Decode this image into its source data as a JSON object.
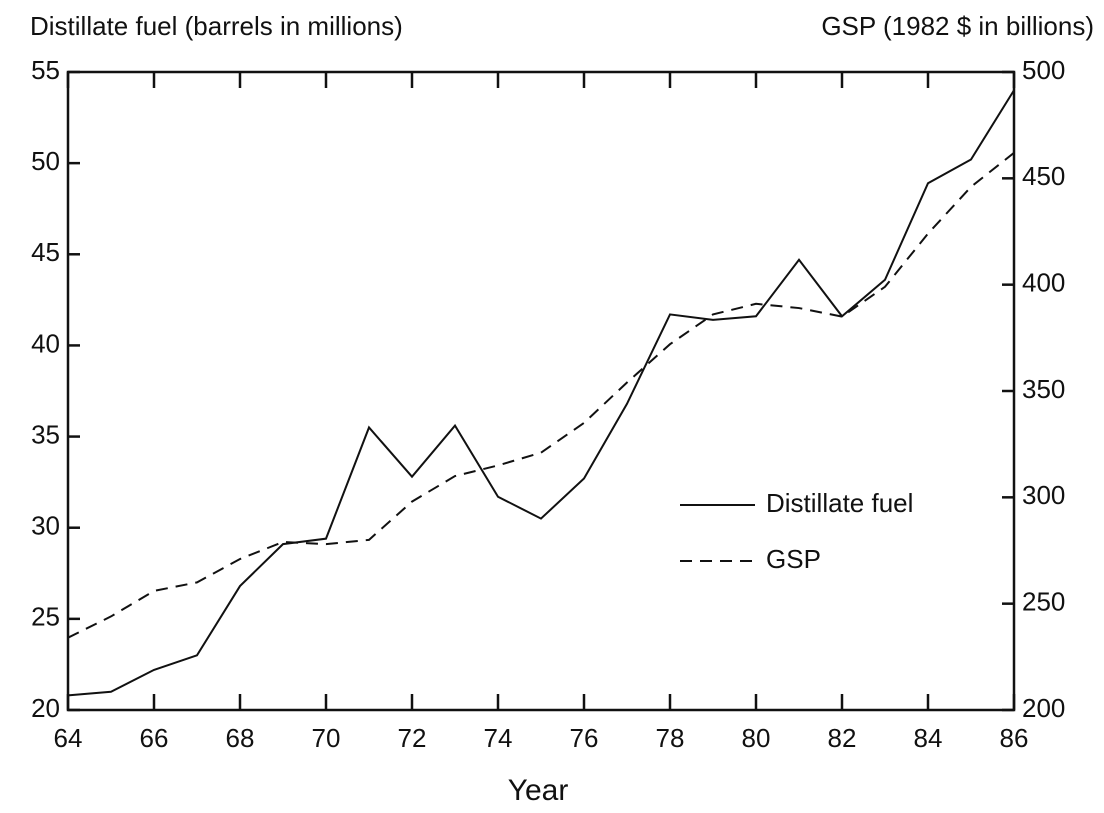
{
  "chart_data": {
    "type": "line",
    "y_label": "Distillate fuel (barrels in millions)",
    "y2_label": "GSP (1982 $ in billions)",
    "x_label": "Year",
    "x": [
      64,
      65,
      66,
      67,
      68,
      69,
      70,
      71,
      72,
      73,
      74,
      75,
      76,
      77,
      78,
      79,
      80,
      81,
      82,
      83,
      84,
      85,
      86
    ],
    "series": [
      {
        "name": "Distillate fuel",
        "color": "#111111",
        "dash": "solid",
        "values": [
          20.8,
          21.0,
          22.2,
          23.0,
          26.8,
          29.1,
          29.4,
          35.5,
          32.8,
          35.6,
          31.7,
          30.5,
          32.7,
          36.8,
          41.7,
          41.4,
          41.6,
          44.7,
          41.6,
          43.6,
          48.9,
          50.2,
          54.0
        ]
      },
      {
        "name": "GSP",
        "color": "#111111",
        "dash": "dashed",
        "axis": "y2",
        "values": [
          234,
          244,
          256,
          260,
          271,
          279,
          278,
          280,
          298,
          310,
          315,
          321,
          335,
          354,
          372,
          386,
          391,
          389,
          385,
          399,
          424,
          446,
          462
        ]
      }
    ],
    "xlim": [
      64,
      86
    ],
    "xticks": [
      64,
      66,
      68,
      70,
      72,
      74,
      76,
      78,
      80,
      82,
      84,
      86
    ],
    "ylim": [
      20,
      55
    ],
    "yticks": [
      20,
      25,
      30,
      35,
      40,
      45,
      50,
      55
    ],
    "y2lim": [
      200,
      500
    ],
    "y2ticks": [
      200,
      250,
      300,
      350,
      400,
      450,
      500
    ],
    "grid": false
  }
}
